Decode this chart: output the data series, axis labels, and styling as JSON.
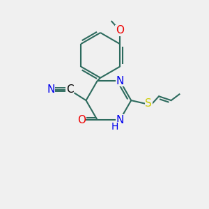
{
  "bg_color": "#f0f0f0",
  "bond_color": "#2d6b5e",
  "atom_colors": {
    "N": "#0000ee",
    "O": "#ee0000",
    "S": "#cccc00",
    "C": "#000000",
    "H": "#0000ee"
  },
  "bond_width": 1.5,
  "fontsize": 11
}
